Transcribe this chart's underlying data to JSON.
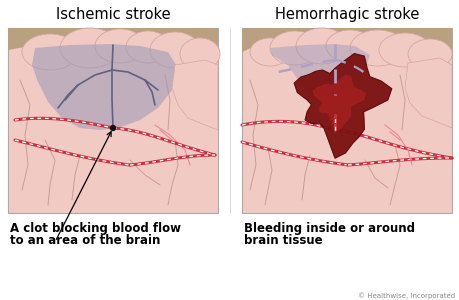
{
  "title_left": "Ischemic stroke",
  "title_right": "Hemorrhagic stroke",
  "caption_left_line1": "A clot blocking blood flow",
  "caption_left_line2": "to an area of the brain",
  "caption_right_line1": "Bleeding inside or around",
  "caption_right_line2": "brain tissue",
  "copyright": "© Healthwise, Incorporated",
  "bg_color": "#ffffff",
  "brain_pink": "#f2cac4",
  "brain_pink_mid": "#e8b8b0",
  "brain_pink_dark": "#d8a098",
  "skull_tan": "#b8a080",
  "ischemic_shadow": "#9898b8",
  "blood_vessel_red": "#cc3040",
  "blood_vessel_light": "#e87888",
  "hemorrhage_red_dark": "#7a1010",
  "hemorrhage_red": "#aa2020",
  "dashed_vessel": "#b0a0c8",
  "panel_border": "#aaaaaa",
  "groove_dark": "#c09090",
  "groove_mid": "#d4a8a0",
  "clot_dot": "#111111"
}
